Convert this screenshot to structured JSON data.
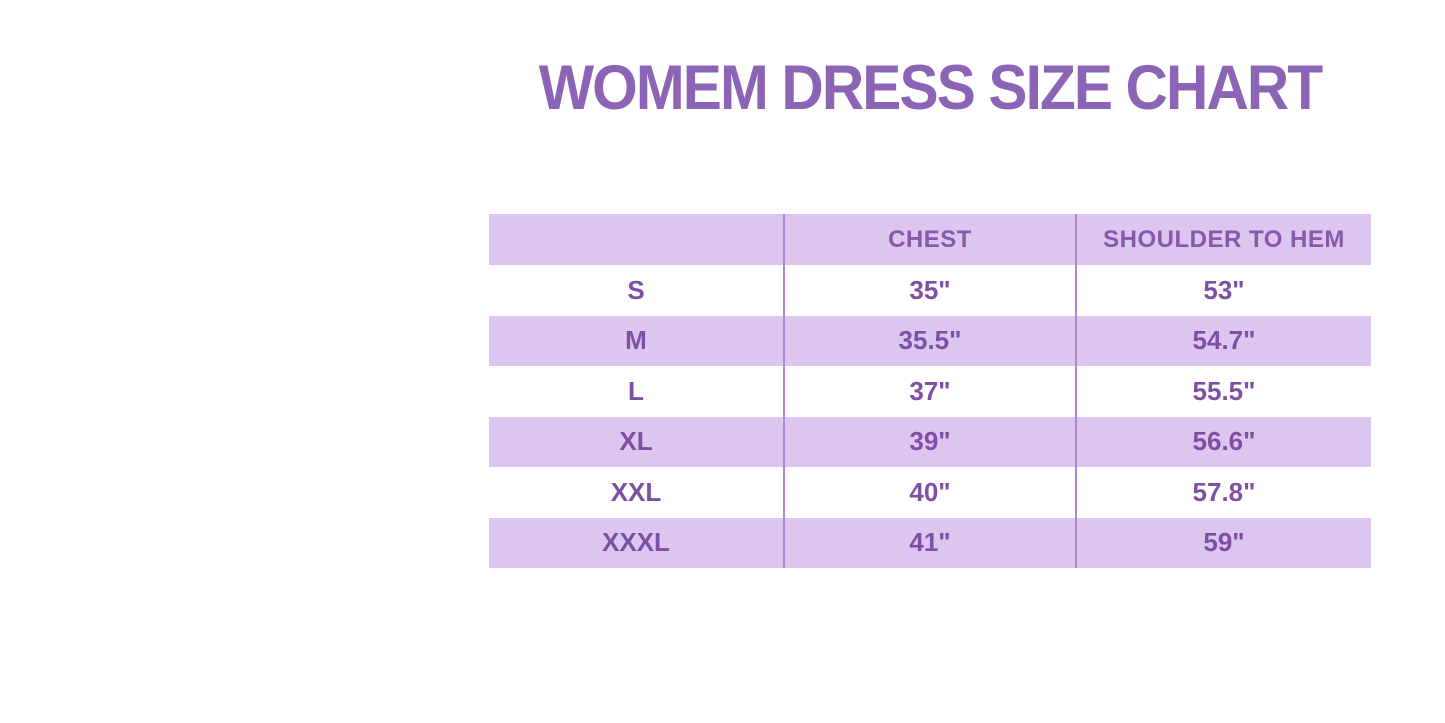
{
  "title": "WOMEM DRESS SIZE CHART",
  "colors": {
    "title_purple": "#8c64b6",
    "stripe_lavender": "#dcc6ef",
    "divider_purple": "#b088d2",
    "cell_text_purple": "#7d50a6",
    "header_text_purple": "#8659ad",
    "background": "#ffffff"
  },
  "chart_data": {
    "type": "table",
    "title": "WOMEM DRESS SIZE CHART",
    "columns": [
      "",
      "CHEST",
      "SHOULDER TO HEM"
    ],
    "rows": [
      [
        "S",
        "35\"",
        "53\""
      ],
      [
        "M",
        "35.5\"",
        "54.7\""
      ],
      [
        "L",
        "37\"",
        "55.5\""
      ],
      [
        "XL",
        "39\"",
        "56.6\""
      ],
      [
        "XXL",
        "40\"",
        "57.8\""
      ],
      [
        "XXXL",
        "41\"",
        "59\""
      ]
    ],
    "layout": {
      "header_background": "#dcc6ef",
      "striped_rows": [
        1,
        3,
        5
      ],
      "stripe_color": "#dcc6ef",
      "vertical_dividers": true,
      "grid": "columns-only",
      "legend": "none"
    }
  }
}
